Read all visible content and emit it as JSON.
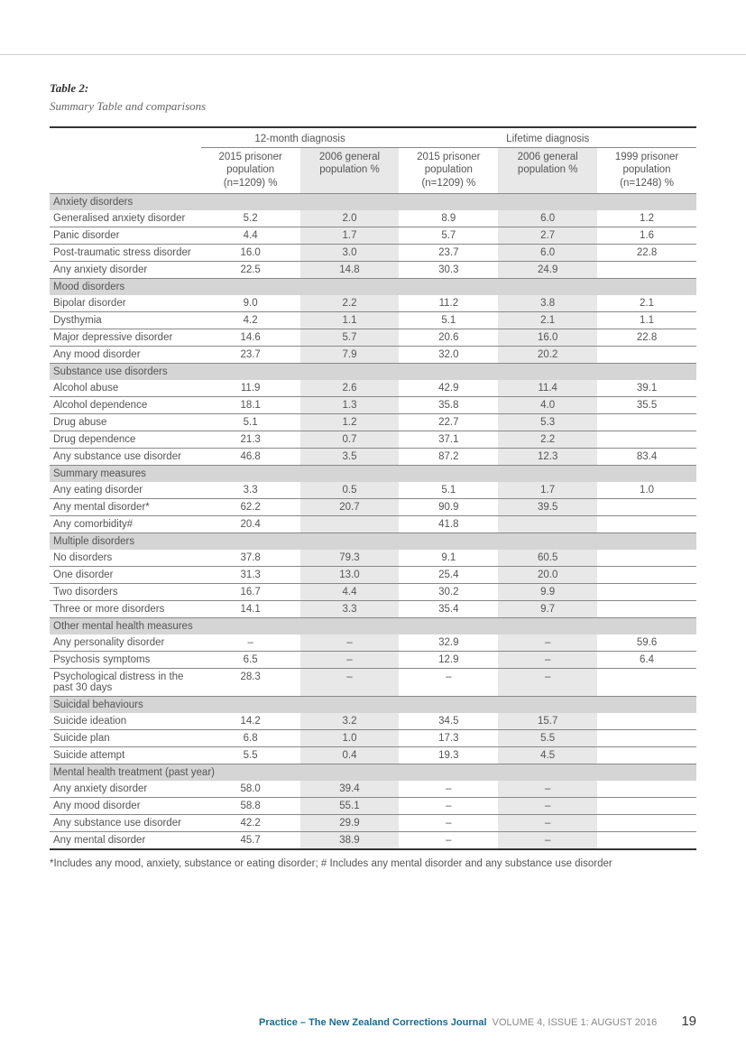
{
  "table_number": "Table 2:",
  "table_caption": "Summary Table and comparisons",
  "header_group_12m": "12-month diagnosis",
  "header_group_life": "Lifetime diagnosis",
  "col_headers": {
    "c1": "2015 prisoner population (n=1209) %",
    "c2": "2006 general population %",
    "c3": "2015 prisoner population (n=1209) %",
    "c4": "2006 general population %",
    "c5": "1999 prisoner population (n=1248) %"
  },
  "sections": [
    {
      "title": "Anxiety disorders",
      "rows": [
        {
          "label": "Generalised anxiety disorder",
          "v": [
            "5.2",
            "2.0",
            "8.9",
            "6.0",
            "1.2"
          ]
        },
        {
          "label": "Panic disorder",
          "v": [
            "4.4",
            "1.7",
            "5.7",
            "2.7",
            "1.6"
          ]
        },
        {
          "label": "Post-traumatic stress disorder",
          "v": [
            "16.0",
            "3.0",
            "23.7",
            "6.0",
            "22.8"
          ]
        },
        {
          "label": "Any anxiety disorder",
          "v": [
            "22.5",
            "14.8",
            "30.3",
            "24.9",
            ""
          ]
        }
      ]
    },
    {
      "title": "Mood disorders",
      "rows": [
        {
          "label": "Bipolar disorder",
          "v": [
            "9.0",
            "2.2",
            "11.2",
            "3.8",
            "2.1"
          ]
        },
        {
          "label": "Dysthymia",
          "v": [
            "4.2",
            "1.1",
            "5.1",
            "2.1",
            "1.1"
          ]
        },
        {
          "label": "Major depressive disorder",
          "v": [
            "14.6",
            "5.7",
            "20.6",
            "16.0",
            "22.8"
          ]
        },
        {
          "label": "Any mood disorder",
          "v": [
            "23.7",
            "7.9",
            "32.0",
            "20.2",
            ""
          ]
        }
      ]
    },
    {
      "title": "Substance use disorders",
      "rows": [
        {
          "label": "Alcohol abuse",
          "v": [
            "11.9",
            "2.6",
            "42.9",
            "11.4",
            "39.1"
          ]
        },
        {
          "label": "Alcohol dependence",
          "v": [
            "18.1",
            "1.3",
            "35.8",
            "4.0",
            "35.5"
          ]
        },
        {
          "label": "Drug abuse",
          "v": [
            "5.1",
            "1.2",
            "22.7",
            "5.3",
            ""
          ]
        },
        {
          "label": "Drug dependence",
          "v": [
            "21.3",
            "0.7",
            "37.1",
            "2.2",
            ""
          ]
        },
        {
          "label": "Any substance use disorder",
          "v": [
            "46.8",
            "3.5",
            "87.2",
            "12.3",
            "83.4"
          ]
        }
      ]
    },
    {
      "title": "Summary measures",
      "rows": [
        {
          "label": "Any eating disorder",
          "v": [
            "3.3",
            "0.5",
            "5.1",
            "1.7",
            "1.0"
          ]
        },
        {
          "label": "Any mental disorder*",
          "v": [
            "62.2",
            "20.7",
            "90.9",
            "39.5",
            ""
          ]
        },
        {
          "label": "Any comorbidity#",
          "v": [
            "20.4",
            "",
            "41.8",
            "",
            ""
          ]
        }
      ]
    },
    {
      "title": "Multiple disorders",
      "rows": [
        {
          "label": "No disorders",
          "v": [
            "37.8",
            "79.3",
            "9.1",
            "60.5",
            ""
          ]
        },
        {
          "label": "One disorder",
          "v": [
            "31.3",
            "13.0",
            "25.4",
            "20.0",
            ""
          ]
        },
        {
          "label": "Two disorders",
          "v": [
            "16.7",
            "4.4",
            "30.2",
            "9.9",
            ""
          ]
        },
        {
          "label": "Three or more disorders",
          "v": [
            "14.1",
            "3.3",
            "35.4",
            "9.7",
            ""
          ]
        }
      ]
    },
    {
      "title": "Other mental health measures",
      "rows": [
        {
          "label": "Any personality disorder",
          "v": [
            "–",
            "–",
            "32.9",
            "–",
            "59.6"
          ]
        },
        {
          "label": "Psychosis symptoms",
          "v": [
            "6.5",
            "–",
            "12.9",
            "–",
            "6.4"
          ]
        },
        {
          "label": "Psychological distress in the past 30 days",
          "v": [
            "28.3",
            "–",
            "–",
            "–",
            ""
          ]
        }
      ]
    },
    {
      "title": "Suicidal behaviours",
      "rows": [
        {
          "label": "Suicide ideation",
          "v": [
            "14.2",
            "3.2",
            "34.5",
            "15.7",
            ""
          ]
        },
        {
          "label": "Suicide plan",
          "v": [
            "6.8",
            "1.0",
            "17.3",
            "5.5",
            ""
          ]
        },
        {
          "label": "Suicide attempt",
          "v": [
            "5.5",
            "0.4",
            "19.3",
            "4.5",
            ""
          ]
        }
      ]
    },
    {
      "title": "Mental health treatment (past year)",
      "rows": [
        {
          "label": "Any anxiety disorder",
          "v": [
            "58.0",
            "39.4",
            "–",
            "–",
            ""
          ]
        },
        {
          "label": "Any mood disorder",
          "v": [
            "58.8",
            "55.1",
            "–",
            "–",
            ""
          ]
        },
        {
          "label": "Any substance use disorder",
          "v": [
            "42.2",
            "29.9",
            "–",
            "–",
            ""
          ]
        },
        {
          "label": "Any mental disorder",
          "v": [
            "45.7",
            "38.9",
            "–",
            "–",
            ""
          ]
        }
      ]
    }
  ],
  "footnote": "*Includes any mood, anxiety, substance or eating disorder; # Includes any mental disorder and any substance use disorder",
  "footer_journal": "Practice – The New Zealand Corrections Journal",
  "footer_issue": "VOLUME 4, ISSUE 1: AUGUST 2016",
  "footer_page": "19",
  "style": {
    "shaded_cols": [
      1,
      3
    ],
    "colors": {
      "group_header_bg": "#d5d5d5",
      "shade_bg": "#e8e8e8",
      "border_thick": "#333333",
      "border_thin": "#888888",
      "journal": "#1a6b8e"
    }
  }
}
